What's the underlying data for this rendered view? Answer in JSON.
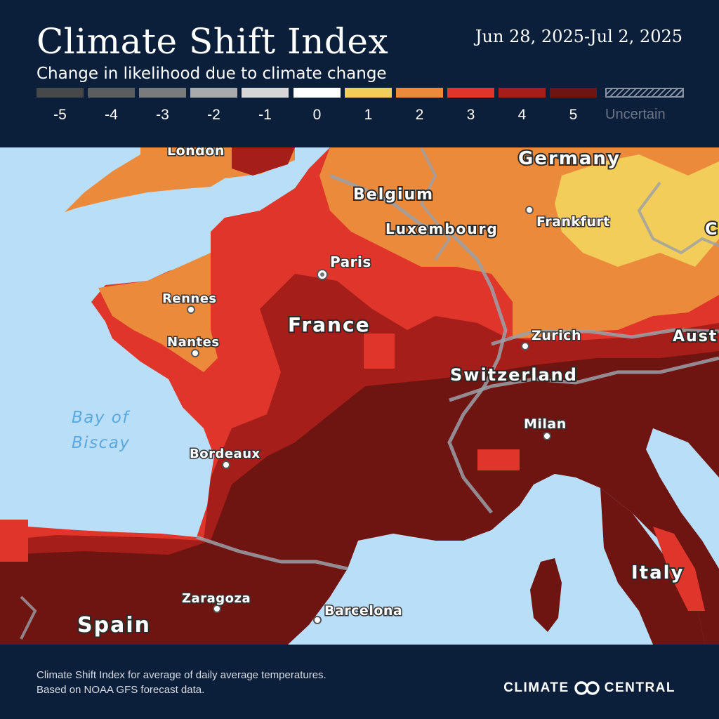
{
  "header": {
    "title": "Climate Shift Index",
    "subtitle": "Change in likelihood due to climate change",
    "date_range": "Jun 28, 2025-Jul 2, 2025"
  },
  "legend": {
    "items": [
      {
        "label": "-5",
        "color": "#474849"
      },
      {
        "label": "-4",
        "color": "#5c5d5f"
      },
      {
        "label": "-3",
        "color": "#7a7b7d"
      },
      {
        "label": "-2",
        "color": "#a9aaac"
      },
      {
        "label": "-1",
        "color": "#d6d6d6"
      },
      {
        "label": "0",
        "color": "#ffffff"
      },
      {
        "label": "1",
        "color": "#f3cd5a"
      },
      {
        "label": "2",
        "color": "#ec8a3c"
      },
      {
        "label": "3",
        "color": "#e0352a"
      },
      {
        "label": "4",
        "color": "#a61e1a"
      },
      {
        "label": "5",
        "color": "#6e1512"
      }
    ],
    "uncertain_label": "Uncertain"
  },
  "map": {
    "cities": [
      {
        "name": "London"
      },
      {
        "name": "Paris"
      },
      {
        "name": "Rennes"
      },
      {
        "name": "Nantes"
      },
      {
        "name": "Bordeaux"
      },
      {
        "name": "Frankfurt"
      },
      {
        "name": "Zurich"
      },
      {
        "name": "Milan"
      },
      {
        "name": "Zaragoza"
      },
      {
        "name": "Barcelona"
      }
    ],
    "countries": [
      "Germany",
      "Belgium",
      "Luxembourg",
      "France",
      "Switzerland",
      "Spain",
      "Italy",
      "Aust",
      "C"
    ],
    "sea": {
      "line1": "Bay of",
      "line2": "Biscay"
    }
  },
  "footer": {
    "note_line1": "Climate Shift Index for average of daily average temperatures.",
    "note_line2": "Based on NOAA GFS forecast data.",
    "brand_left": "CLIMATE",
    "brand_right": "CENTRAL"
  }
}
